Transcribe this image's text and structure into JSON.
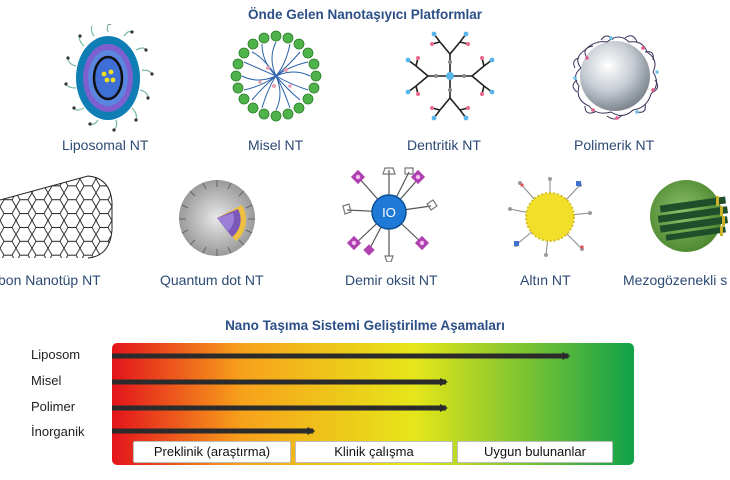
{
  "titles": {
    "platforms": "Önde Gelen Nanotaşıyıcı Platformlar",
    "stages": "Nano Taşıma Sistemi Geliştirilme Aşamaları"
  },
  "nanocarriers": [
    {
      "label": "Liposomal NT",
      "icon": "liposome-icon"
    },
    {
      "label": "Misel NT",
      "icon": "micelle-icon"
    },
    {
      "label": "Dentritik NT",
      "icon": "dendrimer-icon"
    },
    {
      "label": "Polimerik NT",
      "icon": "polymeric-np-icon"
    },
    {
      "label": "bon Nanotüp NT",
      "icon": "carbon-nanotube-icon"
    },
    {
      "label": "Quantum dot NT",
      "icon": "quantum-dot-icon"
    },
    {
      "label": "Demir oksit NT",
      "icon": "iron-oxide-icon",
      "core_text": "IO"
    },
    {
      "label": "Altın NT",
      "icon": "gold-np-icon"
    },
    {
      "label": "Mezogözenekli s",
      "icon": "mesoporous-silica-icon"
    }
  ],
  "chart_data": {
    "type": "bar",
    "orientation": "horizontal",
    "title": "Nano Taşıma Sistemi Geliştirilme Aşamaları",
    "categories": [
      "Liposom",
      "Misel",
      "Polimer",
      "İnorganik"
    ],
    "phases": [
      "Preklinik (araştırma)",
      "Klinik çalışma",
      "Uygun bulunanlar"
    ],
    "values": [
      2.72,
      2.0,
      2.0,
      1.22
    ],
    "unit": "phase",
    "xlim": [
      0,
      3
    ],
    "gradient_colors": [
      "#e3141c",
      "#f7a21b",
      "#e6e619",
      "#11a14a"
    ],
    "arrow_color": "#2b2b2b"
  }
}
